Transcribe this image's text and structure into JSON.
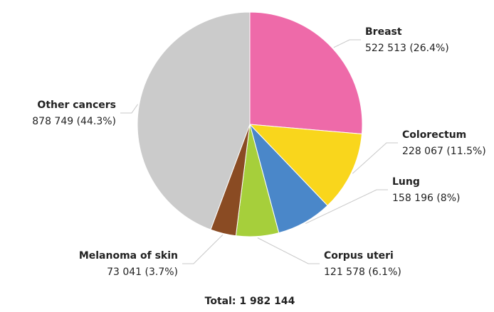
{
  "chart_data": {
    "type": "pie",
    "categories": [
      "Breast",
      "Colorectum",
      "Lung",
      "Corpus uteri",
      "Melanoma of skin",
      "Other cancers"
    ],
    "values": [
      522513,
      228067,
      158196,
      121578,
      73041,
      878749
    ],
    "value_labels": [
      "522 513 (26.4%)",
      "228 067 (11.5%)",
      "158 196 (8%)",
      "121 578 (6.1%)",
      "73 041 (3.7%)",
      "878 749 (44.3%)"
    ],
    "colors": [
      "#ee6aa9",
      "#f9d61c",
      "#4a87c9",
      "#a6cf3b",
      "#8a4b23",
      "#cbcbcb"
    ],
    "total_label": "Total: 1 982 144"
  }
}
